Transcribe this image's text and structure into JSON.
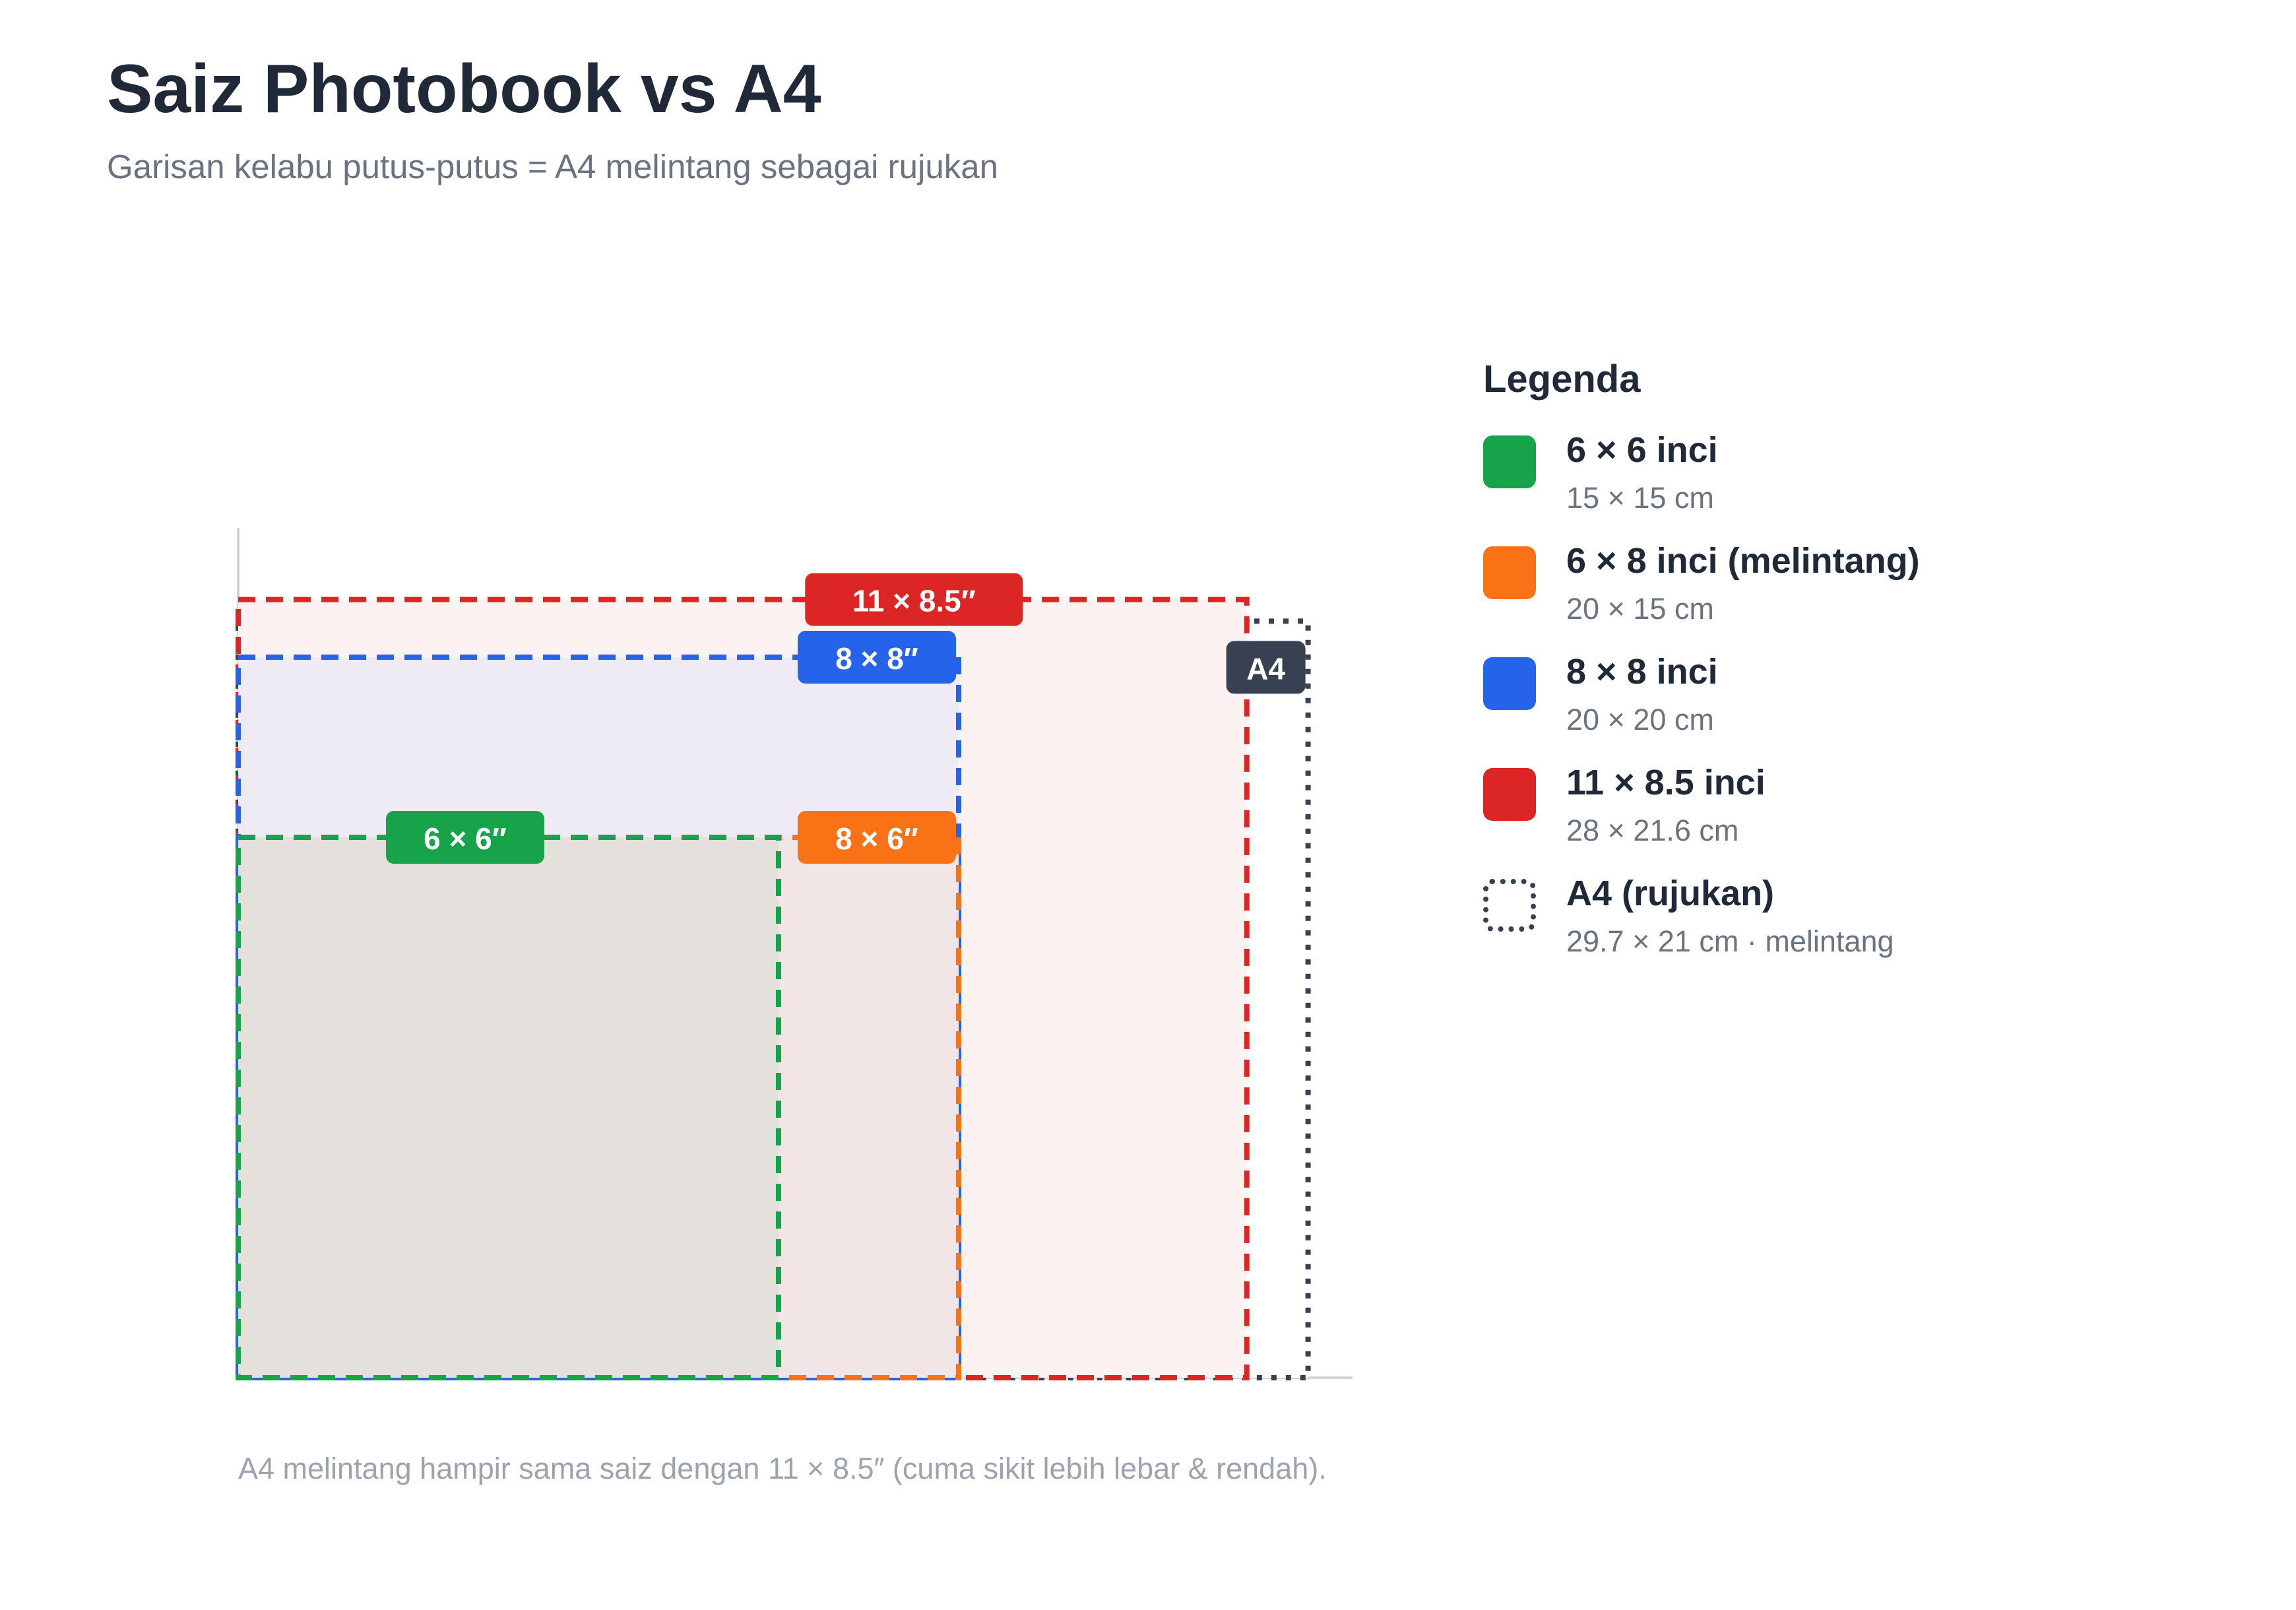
{
  "header": {
    "title": "Saiz Photobook vs A4",
    "subtitle": "Garisan kelabu putus-putus = A4 melintang sebagai rujukan"
  },
  "diagram": {
    "unit": "cm",
    "rectangles": [
      {
        "id": "a4",
        "label": "A4",
        "width": 29.7,
        "height": 21,
        "color": "#374151",
        "fill": "#ffffff",
        "dash": "dotted"
      },
      {
        "id": "11x8.5",
        "label": "11 × 8.5″",
        "width": 28,
        "height": 21.6,
        "color": "#dc2626",
        "fill": "#fdf2f2",
        "dash": "dashed"
      },
      {
        "id": "8x8",
        "label": "8 × 8″",
        "width": 20,
        "height": 20,
        "color": "#2563eb",
        "fill": "#efebf5",
        "dash": "dashed"
      },
      {
        "id": "6x8",
        "label": "8 × 6″",
        "width": 20,
        "height": 15,
        "color": "#f97316",
        "fill": "#f1e5e5",
        "dash": "dashed"
      },
      {
        "id": "6x6",
        "label": "6 × 6″",
        "width": 15,
        "height": 15,
        "color": "#16a34a",
        "fill": "#e4e1dc",
        "dash": "dashed"
      }
    ]
  },
  "legend": {
    "title": "Legenda",
    "items": [
      {
        "name": "6 × 6 inci",
        "sub": "15 × 15 cm",
        "color": "#16a34a"
      },
      {
        "name": "6 × 8 inci (melintang)",
        "sub": "20 × 15 cm",
        "color": "#f97316"
      },
      {
        "name": "8 × 8 inci",
        "sub": "20 × 20 cm",
        "color": "#2563eb"
      },
      {
        "name": "11 × 8.5 inci",
        "sub": "28 × 21.6 cm",
        "color": "#dc2626"
      },
      {
        "name": "A4 (rujukan)",
        "sub": "29.7 × 21 cm · melintang",
        "color": "#374151",
        "swatch": "dotted"
      }
    ]
  },
  "footnote": "A4 melintang hampir sama saiz dengan 11 × 8.5″ (cuma sikit lebih lebar & rendah)."
}
